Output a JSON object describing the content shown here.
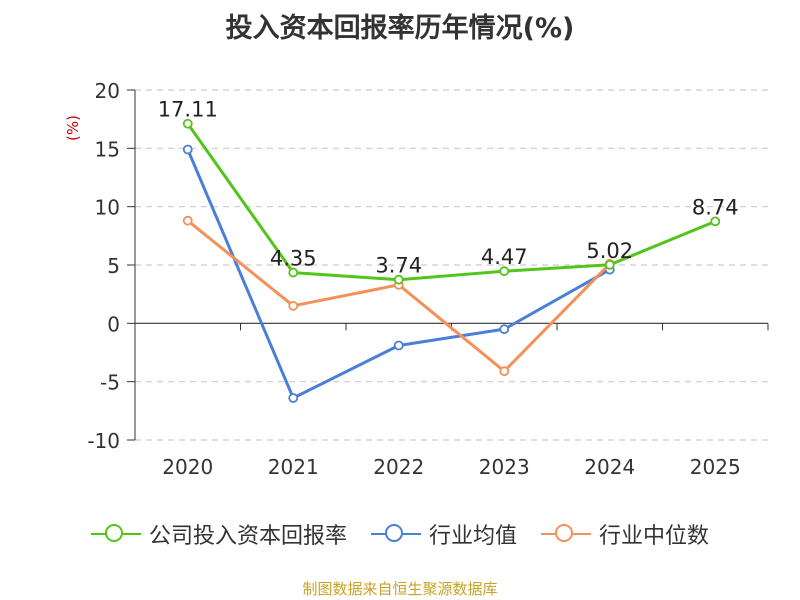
{
  "chart_data": {
    "type": "line",
    "title": "投入资本回报率历年情况(%)",
    "ylabel": "(%)",
    "xlabel": "",
    "categories": [
      "2020",
      "2021",
      "2022",
      "2023",
      "2024",
      "2025"
    ],
    "ylim": [
      -10,
      20
    ],
    "yticks": [
      20,
      15,
      10,
      5,
      0,
      -5,
      -10
    ],
    "grid": true,
    "legend_position": "bottom",
    "series": [
      {
        "name": "公司投入资本回报率",
        "color": "#52c41a",
        "values": [
          17.11,
          4.35,
          3.74,
          4.47,
          5.02,
          8.74
        ],
        "labels": [
          "17.11",
          "4.35",
          "3.74",
          "4.47",
          "5.02",
          "8.74"
        ]
      },
      {
        "name": "行业均值",
        "color": "#4a7fd8",
        "values": [
          14.9,
          -6.4,
          -1.9,
          -0.5,
          4.6,
          null
        ]
      },
      {
        "name": "行业中位数",
        "color": "#f4905a",
        "values": [
          8.8,
          1.5,
          3.3,
          -4.1,
          5.1,
          null
        ]
      }
    ]
  },
  "footer": {
    "source": "制图数据来自恒生聚源数据库"
  }
}
